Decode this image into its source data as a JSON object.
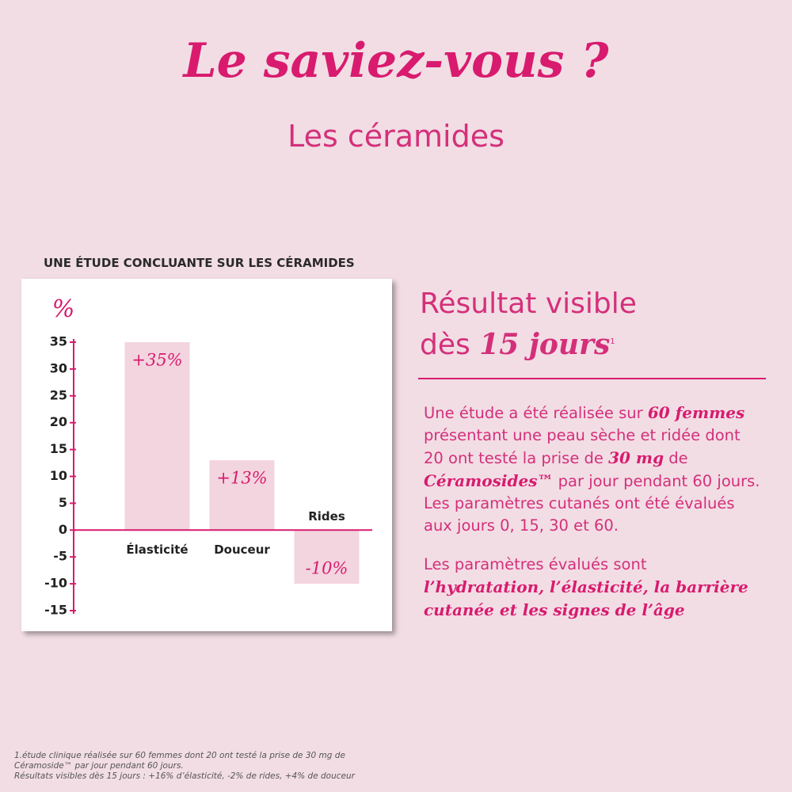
{
  "header": {
    "title": "Le saviez-vous ?",
    "subtitle": "Les céramides"
  },
  "chart_data": {
    "type": "bar",
    "title": "UNE ÉTUDE CONCLUANTE SUR LES CÉRAMIDES",
    "y_label": "%",
    "categories": [
      "Élasticité",
      "Douceur",
      "Rides"
    ],
    "values": [
      35,
      13,
      -10
    ],
    "value_labels": [
      "+35%",
      "+13%",
      "-10%"
    ],
    "color": "#f3d5df",
    "ylim": [
      -15,
      35
    ],
    "yticks": [
      -15,
      -10,
      -5,
      0,
      5,
      10,
      15,
      20,
      25,
      30,
      35
    ]
  },
  "result": {
    "heading": [
      "Résultat visible",
      "dès ",
      "15 jours",
      "1"
    ],
    "paragraphs": [
      [
        "Une étude a été réalisée sur ",
        "60 femmes",
        " présentant une peau sèche et ridée dont 20 ont testé la prise de ",
        "30 mg",
        " de ",
        "Céramosides™",
        " par jour pendant 60 jours. Les paramètres cutanés ont été évalués aux jours 0, 15, 30 et 60."
      ],
      [
        "Les paramètres évalués sont ",
        "l’hydratation, l’élasticité, la barrière cutanée et les signes de l’âge"
      ]
    ]
  },
  "footnote": [
    "1.étude clinique réalisée sur 60 femmes dont 20 ont testé la prise de 30 mg de",
    "Céramoside™ par jour pendant 60 jours.",
    "Résultats visibles dès 15 jours : +16% d’élasticité, -2% de rides, +4% de douceur"
  ]
}
